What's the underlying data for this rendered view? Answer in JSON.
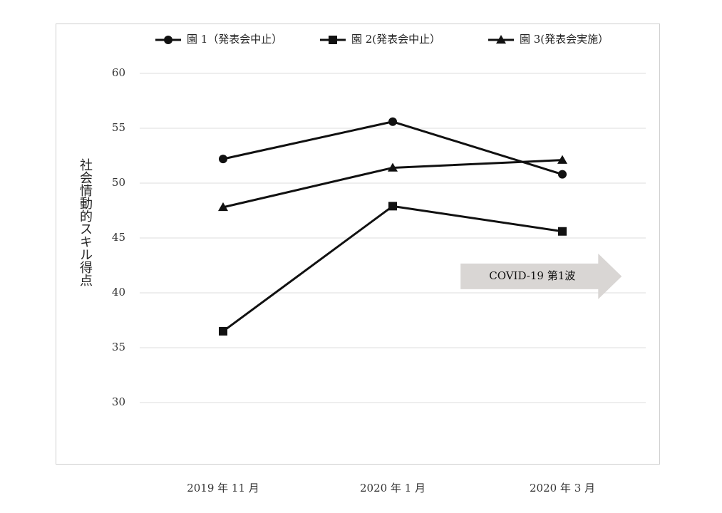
{
  "chart_data": {
    "type": "line",
    "title": "",
    "xlabel": "",
    "ylabel": "社会情動的スキル得点",
    "categories": [
      "2019 年 11 月",
      "2020 年 1 月",
      "2020 年 3 月"
    ],
    "ylim": [
      30,
      60
    ],
    "yticks": [
      30,
      35,
      40,
      45,
      50,
      55,
      60
    ],
    "grid": true,
    "legend_position": "top",
    "series": [
      {
        "name": "園 1（発表会中止）",
        "marker": "circle",
        "values": [
          52.2,
          55.6,
          50.8
        ]
      },
      {
        "name": "園 2(発表会中止）",
        "marker": "square",
        "values": [
          36.5,
          47.9,
          45.6
        ]
      },
      {
        "name": "園 3(発表会実施）",
        "marker": "triangle",
        "values": [
          47.8,
          51.4,
          52.1
        ]
      }
    ],
    "annotation": {
      "text": "COVID-19 第1波",
      "shape": "right-arrow",
      "color": "#d9d6d4",
      "x_start": 2.4,
      "x_end": 3.35,
      "y_center": 41.5
    }
  }
}
